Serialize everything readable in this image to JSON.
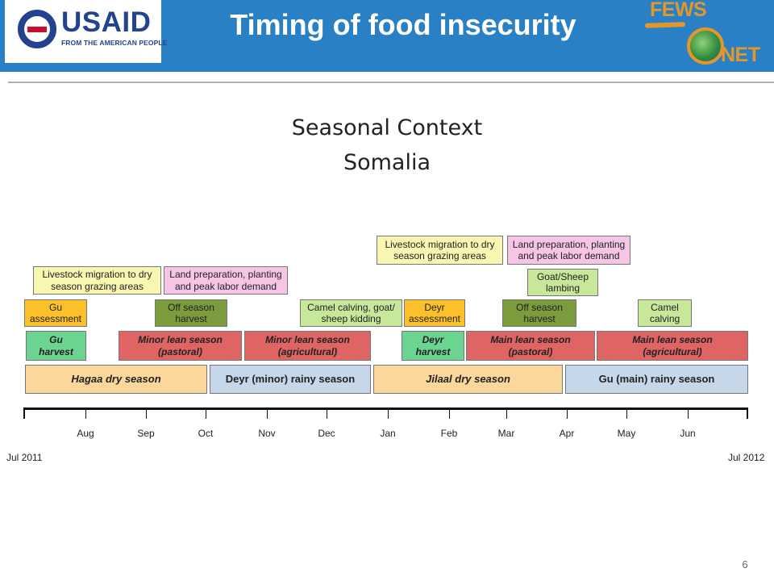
{
  "header": {
    "title": "Timing of food insecurity",
    "usaid_logo_text": "USAID",
    "usaid_tagline": "FROM THE AMERICAN PEOPLE",
    "fews_logo_top": "FEWS",
    "fews_logo_bottom": "NET",
    "header_color": "#2a80c5"
  },
  "subtitle": {
    "line1": "Seasonal Context",
    "line2": "Somalia"
  },
  "timeline": {
    "months": [
      "Aug",
      "Sep",
      "Oct",
      "Nov",
      "Dec",
      "Jan",
      "Feb",
      "Mar",
      "Apr",
      "May",
      "Jun"
    ],
    "start_label": "Jul 2011",
    "end_label": "Jul 2012"
  },
  "events": {
    "season_hagaa": "Hagaa dry season",
    "season_deyr": "Deyr (minor) rainy season",
    "season_jilaal": "Jilaal dry season",
    "season_gu": "Gu (main) rainy season",
    "gu_harvest_1": "Gu",
    "gu_harvest_2": "harvest",
    "minor_lean_past_1": "Minor lean season",
    "minor_lean_past_2": "(pastoral)",
    "minor_lean_agri_1": "Minor lean season",
    "minor_lean_agri_2": "(agricultural)",
    "deyr_harvest_1": "Deyr",
    "deyr_harvest_2": "harvest",
    "main_lean_past_1": "Main lean season",
    "main_lean_past_2": "(pastoral)",
    "main_lean_agri_1": "Main lean season",
    "main_lean_agri_2": "(agricultural)",
    "gu_assess_1": "Gu",
    "gu_assess_2": "assessment",
    "offseason_1_1": "Off season",
    "offseason_1_2": "harvest",
    "camel_kid_1": "Camel calving, goat/",
    "camel_kid_2": "sheep kidding",
    "deyr_assess_1": "Deyr",
    "deyr_assess_2": "assessment",
    "offseason_2_1": "Off season",
    "offseason_2_2": "harvest",
    "camel_calving_1": "Camel",
    "camel_calving_2": "calving",
    "goat_lamb_1": "Goat/Sheep",
    "goat_lamb_2": "lambing",
    "migration_1_1": "Livestock migration to dry",
    "migration_1_2": "season grazing areas",
    "landprep_1_1": "Land preparation, planting",
    "landprep_1_2": "and peak labor demand",
    "migration_2_1": "Livestock migration to dry",
    "migration_2_2": "season grazing areas",
    "landprep_2_1": "Land preparation, planting",
    "landprep_2_2": "and peak labor demand"
  },
  "page_number": "6"
}
